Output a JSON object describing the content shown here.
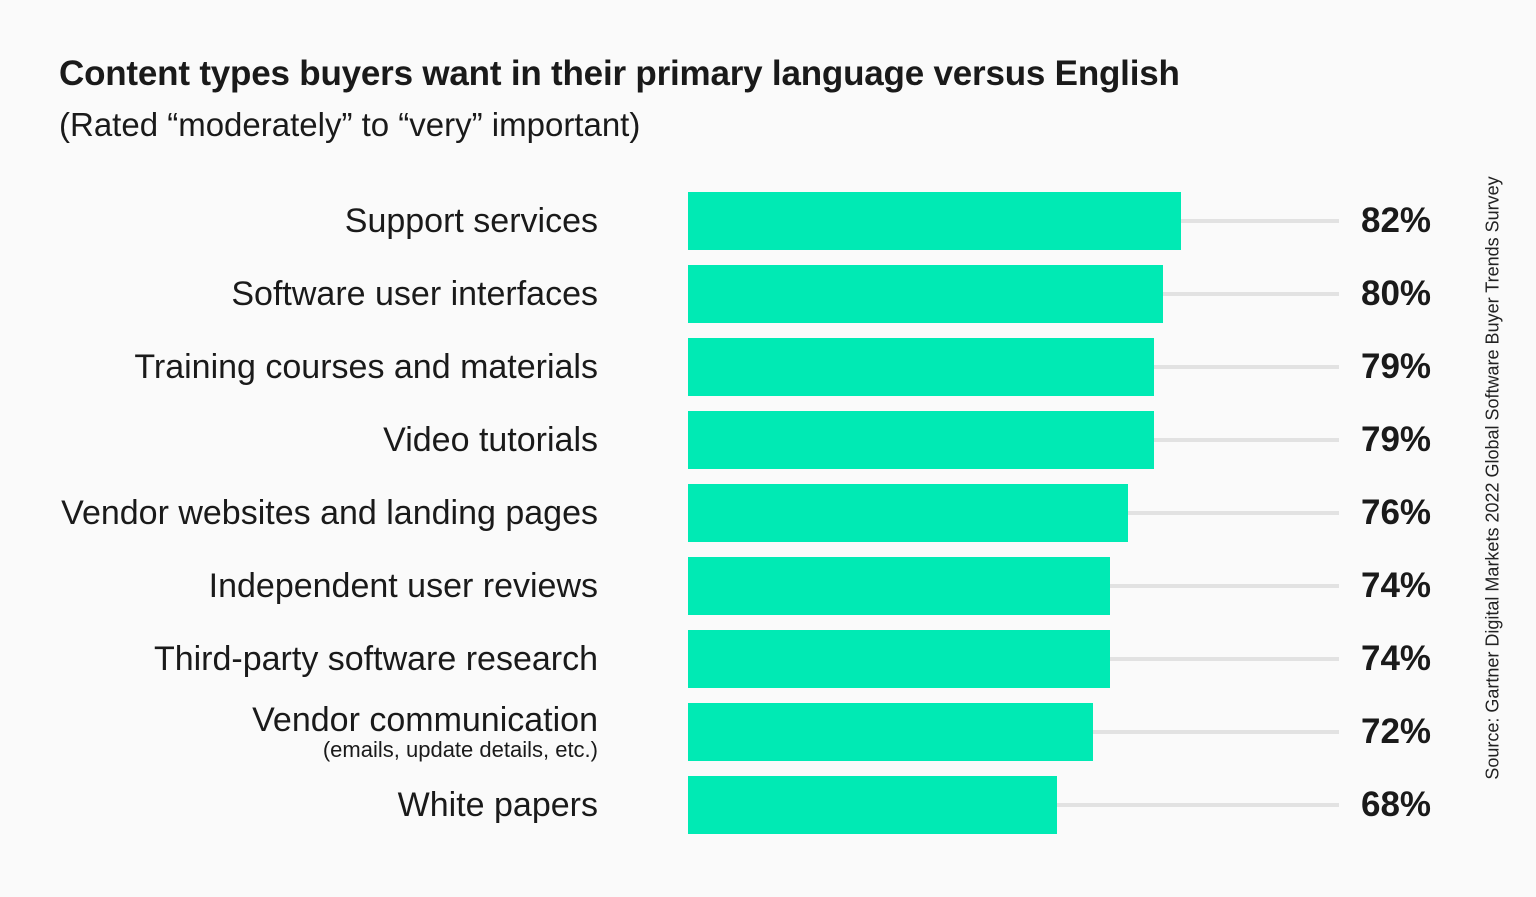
{
  "chart_data": {
    "type": "bar",
    "orientation": "horizontal",
    "title": "Content types buyers want in their primary language versus English",
    "subtitle": "(Rated “moderately” to “very” important)",
    "categories": [
      {
        "label": "Support services",
        "sublabel": ""
      },
      {
        "label": "Software user interfaces",
        "sublabel": ""
      },
      {
        "label": "Training courses and materials",
        "sublabel": ""
      },
      {
        "label": "Video tutorials",
        "sublabel": ""
      },
      {
        "label": "Vendor websites and landing pages",
        "sublabel": ""
      },
      {
        "label": "Independent user reviews",
        "sublabel": ""
      },
      {
        "label": "Third-party software research",
        "sublabel": ""
      },
      {
        "label": "Vendor communication",
        "sublabel": "(emails, update details, etc.)"
      },
      {
        "label": "White papers",
        "sublabel": ""
      }
    ],
    "values": [
      82,
      80,
      79,
      79,
      76,
      74,
      74,
      72,
      68
    ],
    "value_labels": [
      "82%",
      "80%",
      "79%",
      "79%",
      "76%",
      "74%",
      "74%",
      "72%",
      "68%"
    ],
    "xlim": [
      26,
      100
    ],
    "grid": false,
    "legend": "none",
    "colors": {
      "bar": "#00eab4",
      "track": "#e2e2e2",
      "background": "#fafafa"
    },
    "source": "Source: Gartner Digital Markets 2022 Global Software Buyer Trends Survey"
  }
}
